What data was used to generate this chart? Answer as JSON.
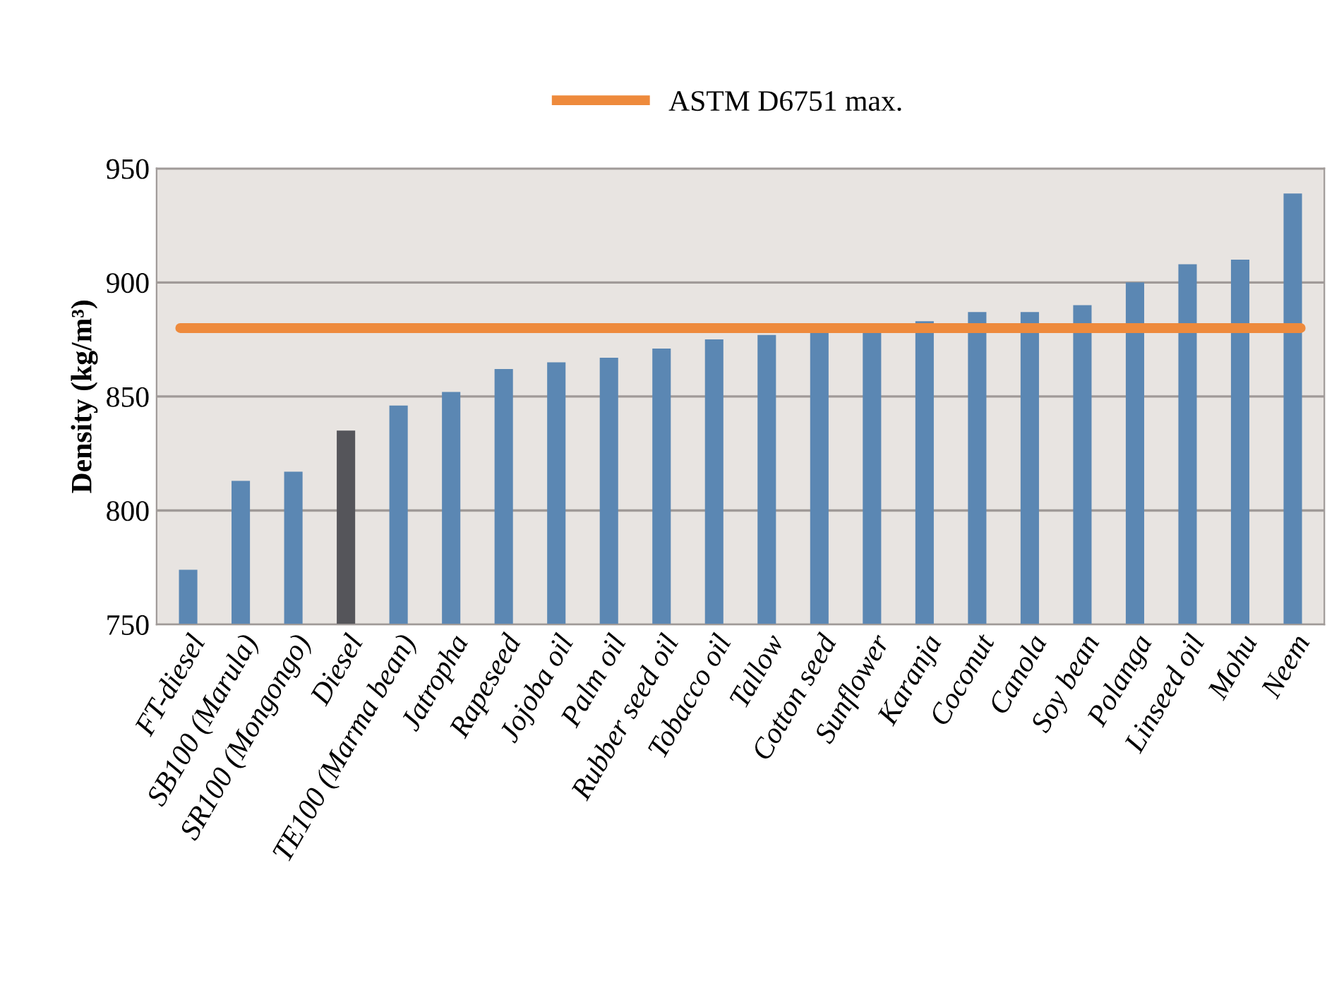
{
  "chart_data": {
    "type": "bar",
    "ylabel": "Density (kg/m³)",
    "categories": [
      "FT-diesel",
      "SB100 (Marula)",
      "SR100 (Mongongo)",
      "Diesel",
      "TE100 (Marma bean)",
      "Jatropha",
      "Rapeseed",
      "Jojoba oil",
      "Palm oil",
      "Rubber seed oil",
      "Tobacco oil",
      "Tallow",
      "Cotton seed",
      "Sunflower",
      "Karanja",
      "Coconut",
      "Canola",
      "Soy bean",
      "Polanga",
      "Linseed oil",
      "Mohu",
      "Neem"
    ],
    "values": [
      774,
      813,
      817,
      835,
      846,
      852,
      862,
      865,
      867,
      871,
      875,
      877,
      879,
      879,
      883,
      887,
      887,
      890,
      900,
      908,
      910,
      939
    ],
    "colors": [
      "#5b87b3",
      "#5b87b3",
      "#5b87b3",
      "#55555a",
      "#5b87b3",
      "#5b87b3",
      "#5b87b3",
      "#5b87b3",
      "#5b87b3",
      "#5b87b3",
      "#5b87b3",
      "#5b87b3",
      "#5b87b3",
      "#5b87b3",
      "#5b87b3",
      "#5b87b3",
      "#5b87b3",
      "#5b87b3",
      "#5b87b3",
      "#5b87b3",
      "#5b87b3",
      "#5b87b3"
    ],
    "ylim": [
      750,
      950
    ],
    "yticks": [
      750,
      800,
      850,
      900,
      950
    ],
    "grid": "y",
    "ref_lines": [
      {
        "axis": "y",
        "value": 880,
        "label": "ASTM D6751 max.",
        "color": "#ee8a3c"
      }
    ],
    "legend": "top"
  }
}
